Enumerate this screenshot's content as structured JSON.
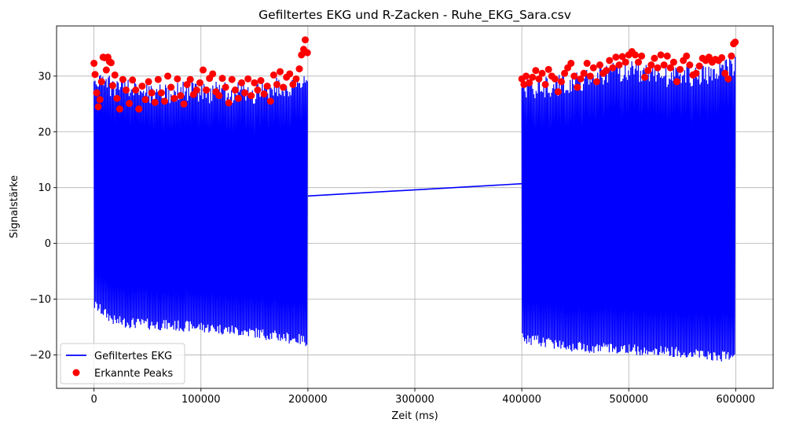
{
  "chart_data": {
    "type": "line",
    "title": "Gefiltertes EKG und R-Zacken - Ruhe_EKG_Sara.csv",
    "xlabel": "Zeit (ms)",
    "ylabel": "Signalstärke",
    "xlim": [
      -35000,
      635000
    ],
    "ylim": [
      -26,
      39
    ],
    "xticks": [
      0,
      100000,
      200000,
      300000,
      400000,
      500000,
      600000
    ],
    "xtick_labels": [
      "0",
      "100000",
      "200000",
      "300000",
      "400000",
      "500000",
      "600000"
    ],
    "yticks": [
      -20,
      -10,
      0,
      10,
      20,
      30
    ],
    "ytick_labels": [
      "−20",
      "−10",
      "0",
      "10",
      "20",
      "30"
    ],
    "grid": true,
    "legend_position": "lower-left",
    "series": [
      {
        "name": "Gefiltertes EKG",
        "style": "line",
        "color": "#0000ff",
        "segments": [
          {
            "x_start": 0,
            "x_end": 200000,
            "top": [
              [
                0,
                31
              ],
              [
                20000,
                30
              ],
              [
                50000,
                29
              ],
              [
                100000,
                29
              ],
              [
                150000,
                29
              ],
              [
                200000,
                31
              ]
            ],
            "bottom": [
              [
                0,
                -12
              ],
              [
                20000,
                -15
              ],
              [
                50000,
                -15.5
              ],
              [
                100000,
                -16
              ],
              [
                150000,
                -17
              ],
              [
                200000,
                -18.5
              ]
            ]
          },
          {
            "x_start": 400000,
            "x_end": 600000,
            "top": [
              [
                400000,
                30
              ],
              [
                430000,
                30
              ],
              [
                470000,
                32
              ],
              [
                500000,
                33
              ],
              [
                530000,
                32
              ],
              [
                570000,
                32
              ],
              [
                600000,
                34
              ]
            ],
            "bottom": [
              [
                400000,
                -18
              ],
              [
                450000,
                -19.5
              ],
              [
                500000,
                -20
              ],
              [
                550000,
                -20.5
              ],
              [
                600000,
                -21.5
              ]
            ]
          }
        ],
        "connector": [
          [
            200000,
            8.5
          ],
          [
            400000,
            10.7
          ]
        ]
      },
      {
        "name": "Erkannte Peaks",
        "style": "markers",
        "color": "#ff0000",
        "points": [
          [
            0,
            32.3
          ],
          [
            1000,
            30.3
          ],
          [
            2500,
            27.0
          ],
          [
            4000,
            24.5
          ],
          [
            5500,
            25.8
          ],
          [
            7000,
            29.0
          ],
          [
            8500,
            33.4
          ],
          [
            10000,
            33.3
          ],
          [
            11500,
            31.1
          ],
          [
            13000,
            33.4
          ],
          [
            14500,
            32.6
          ],
          [
            16000,
            32.4
          ],
          [
            17500,
            28.3
          ],
          [
            19500,
            30.2
          ],
          [
            21500,
            26.0
          ],
          [
            24000,
            24.1
          ],
          [
            27000,
            29.4
          ],
          [
            30000,
            27.5
          ],
          [
            33000,
            25.1
          ],
          [
            36000,
            29.3
          ],
          [
            39000,
            27.5
          ],
          [
            42000,
            24.1
          ],
          [
            45000,
            28.2
          ],
          [
            48000,
            25.8
          ],
          [
            51000,
            29.0
          ],
          [
            54000,
            27.0
          ],
          [
            57000,
            25.3
          ],
          [
            60000,
            29.4
          ],
          [
            63000,
            27.0
          ],
          [
            66000,
            25.5
          ],
          [
            69000,
            30.0
          ],
          [
            72000,
            28.0
          ],
          [
            75000,
            26.0
          ],
          [
            78000,
            29.5
          ],
          [
            81000,
            26.5
          ],
          [
            84000,
            25.0
          ],
          [
            87000,
            28.5
          ],
          [
            90000,
            29.4
          ],
          [
            93000,
            26.7
          ],
          [
            96000,
            27.5
          ],
          [
            99000,
            28.8
          ],
          [
            102000,
            31.1
          ],
          [
            105000,
            27.5
          ],
          [
            108000,
            29.6
          ],
          [
            111000,
            30.4
          ],
          [
            114000,
            27.2
          ],
          [
            117000,
            26.5
          ],
          [
            120000,
            29.6
          ],
          [
            123000,
            28.0
          ],
          [
            126000,
            25.2
          ],
          [
            129000,
            29.4
          ],
          [
            132000,
            27.5
          ],
          [
            135000,
            26.0
          ],
          [
            138000,
            28.8
          ],
          [
            141000,
            27.0
          ],
          [
            144000,
            29.5
          ],
          [
            147000,
            26.5
          ],
          [
            150000,
            28.8
          ],
          [
            153000,
            27.5
          ],
          [
            156000,
            29.2
          ],
          [
            159000,
            26.8
          ],
          [
            162000,
            28.2
          ],
          [
            165000,
            25.5
          ],
          [
            168000,
            30.2
          ],
          [
            171000,
            28.5
          ],
          [
            174000,
            30.8
          ],
          [
            177000,
            28.0
          ],
          [
            180000,
            29.8
          ],
          [
            183000,
            30.4
          ],
          [
            186000,
            28.5
          ],
          [
            189000,
            29.5
          ],
          [
            192000,
            31.3
          ],
          [
            194000,
            33.8
          ],
          [
            196000,
            34.8
          ],
          [
            197500,
            36.5
          ],
          [
            199500,
            34.2
          ],
          [
            400000,
            29.5
          ],
          [
            402000,
            28.5
          ],
          [
            404000,
            30.0
          ],
          [
            407000,
            28.8
          ],
          [
            410000,
            29.8
          ],
          [
            413000,
            31.0
          ],
          [
            416000,
            29.5
          ],
          [
            419000,
            30.5
          ],
          [
            422000,
            28.5
          ],
          [
            425000,
            31.2
          ],
          [
            428000,
            30.0
          ],
          [
            431000,
            29.5
          ],
          [
            434000,
            27.2
          ],
          [
            437000,
            29.0
          ],
          [
            440000,
            30.5
          ],
          [
            443000,
            31.5
          ],
          [
            446000,
            32.3
          ],
          [
            449000,
            30.0
          ],
          [
            452000,
            28.0
          ],
          [
            455000,
            29.5
          ],
          [
            458000,
            30.5
          ],
          [
            461000,
            32.3
          ],
          [
            464000,
            30.0
          ],
          [
            467000,
            31.5
          ],
          [
            470000,
            29.0
          ],
          [
            473000,
            32.0
          ],
          [
            476000,
            30.5
          ],
          [
            479000,
            31.0
          ],
          [
            482000,
            32.8
          ],
          [
            485000,
            31.5
          ],
          [
            488000,
            33.4
          ],
          [
            491000,
            32.0
          ],
          [
            494000,
            33.5
          ],
          [
            497000,
            32.5
          ],
          [
            500000,
            33.8
          ],
          [
            503000,
            34.4
          ],
          [
            506000,
            33.8
          ],
          [
            509000,
            32.5
          ],
          [
            512000,
            33.6
          ],
          [
            515000,
            29.8
          ],
          [
            518000,
            31.0
          ],
          [
            521000,
            32.0
          ],
          [
            524000,
            33.2
          ],
          [
            527000,
            31.5
          ],
          [
            530000,
            33.8
          ],
          [
            533000,
            32.0
          ],
          [
            536000,
            33.6
          ],
          [
            539000,
            31.5
          ],
          [
            542000,
            32.5
          ],
          [
            545000,
            29.0
          ],
          [
            548000,
            31.2
          ],
          [
            551000,
            32.8
          ],
          [
            554000,
            33.6
          ],
          [
            557000,
            32.0
          ],
          [
            560000,
            30.2
          ],
          [
            563000,
            30.5
          ],
          [
            566000,
            31.8
          ],
          [
            569000,
            33.2
          ],
          [
            572000,
            32.8
          ],
          [
            575000,
            33.4
          ],
          [
            578000,
            32.5
          ],
          [
            581000,
            33.0
          ],
          [
            584000,
            32.8
          ],
          [
            587000,
            33.3
          ],
          [
            590000,
            30.5
          ],
          [
            593000,
            29.5
          ],
          [
            596000,
            33.6
          ],
          [
            598000,
            35.8
          ],
          [
            599500,
            36.1
          ]
        ]
      }
    ]
  }
}
